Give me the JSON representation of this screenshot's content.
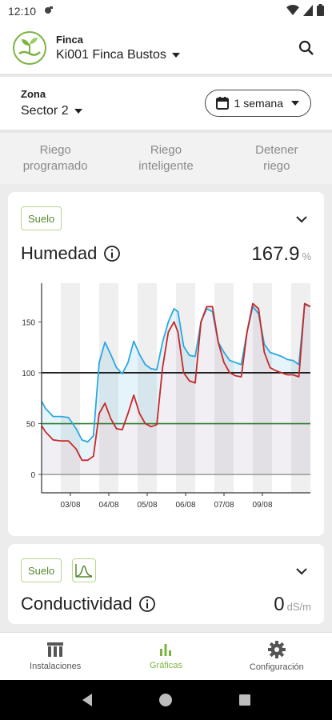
{
  "status_bar": {
    "time": "12:10"
  },
  "header": {
    "farm_label": "Finca",
    "farm_value": "Ki001 Finca Bustos"
  },
  "zone": {
    "label": "Zona",
    "value": "Sector 2",
    "period": "1 semana"
  },
  "actions": [
    {
      "label": "Riego\nprogramado"
    },
    {
      "label": "Riego\ninteligente"
    },
    {
      "label": "Detener\nriego"
    }
  ],
  "cards": [
    {
      "chip": "Suelo",
      "title": "Humedad",
      "value": "167.9",
      "unit": "%"
    },
    {
      "chip": "Suelo",
      "title": "Conductividad",
      "value": "0",
      "unit": "dS/m"
    }
  ],
  "chart_data": {
    "type": "line",
    "x_tick_labels": [
      "03/08",
      "04/08",
      "05/08",
      "06/08",
      "07/08",
      "09/08"
    ],
    "y_ticks": [
      0,
      50,
      100,
      150
    ],
    "ylim": [
      -18,
      188
    ],
    "xlim": [
      0,
      7
    ],
    "thresholds": [
      {
        "value": 100,
        "color": "#000000"
      },
      {
        "value": 50,
        "color": "#2e7d32"
      }
    ],
    "series": [
      {
        "color": "#29a8e0",
        "x": [
          0,
          0.1,
          0.3,
          0.5,
          0.7,
          0.9,
          1.05,
          1.2,
          1.35,
          1.5,
          1.65,
          1.8,
          1.95,
          2.1,
          2.25,
          2.4,
          2.55,
          2.7,
          2.85,
          3.0,
          3.15,
          3.3,
          3.45,
          3.55,
          3.7,
          3.85,
          4.0,
          4.15,
          4.3,
          4.45,
          4.6,
          4.75,
          4.9,
          5.05,
          5.2,
          5.35,
          5.5,
          5.65,
          5.8,
          5.95,
          6.1,
          6.25,
          6.4,
          6.55,
          6.7,
          6.85,
          7.0
        ],
        "y": [
          72,
          65,
          57,
          57,
          56,
          45,
          34,
          32,
          38,
          110,
          130,
          118,
          105,
          99,
          110,
          131,
          118,
          108,
          104,
          103,
          130,
          150,
          163,
          160,
          126,
          117,
          116,
          150,
          163,
          160,
          130,
          120,
          112,
          110,
          108,
          140,
          165,
          158,
          128,
          120,
          118,
          116,
          113,
          112,
          108,
          167,
          165
        ]
      },
      {
        "color": "#c62828",
        "x": [
          0,
          0.1,
          0.3,
          0.5,
          0.7,
          0.9,
          1.05,
          1.2,
          1.35,
          1.5,
          1.65,
          1.8,
          1.95,
          2.1,
          2.25,
          2.4,
          2.55,
          2.7,
          2.85,
          3.0,
          3.15,
          3.3,
          3.45,
          3.55,
          3.7,
          3.85,
          4.0,
          4.15,
          4.3,
          4.45,
          4.6,
          4.75,
          4.9,
          5.05,
          5.2,
          5.35,
          5.5,
          5.65,
          5.8,
          5.95,
          6.1,
          6.25,
          6.4,
          6.55,
          6.7,
          6.85,
          7.0
        ],
        "y": [
          48,
          42,
          34,
          33,
          33,
          25,
          14,
          14,
          18,
          60,
          70,
          55,
          45,
          44,
          60,
          78,
          60,
          50,
          47,
          49,
          105,
          140,
          150,
          140,
          100,
          92,
          90,
          150,
          165,
          165,
          130,
          110,
          100,
          97,
          96,
          140,
          168,
          163,
          120,
          105,
          102,
          100,
          98,
          98,
          96,
          168,
          165
        ]
      }
    ]
  },
  "nav": [
    {
      "label": "Instalaciones"
    },
    {
      "label": "Gráficas"
    },
    {
      "label": "Configuración"
    }
  ]
}
